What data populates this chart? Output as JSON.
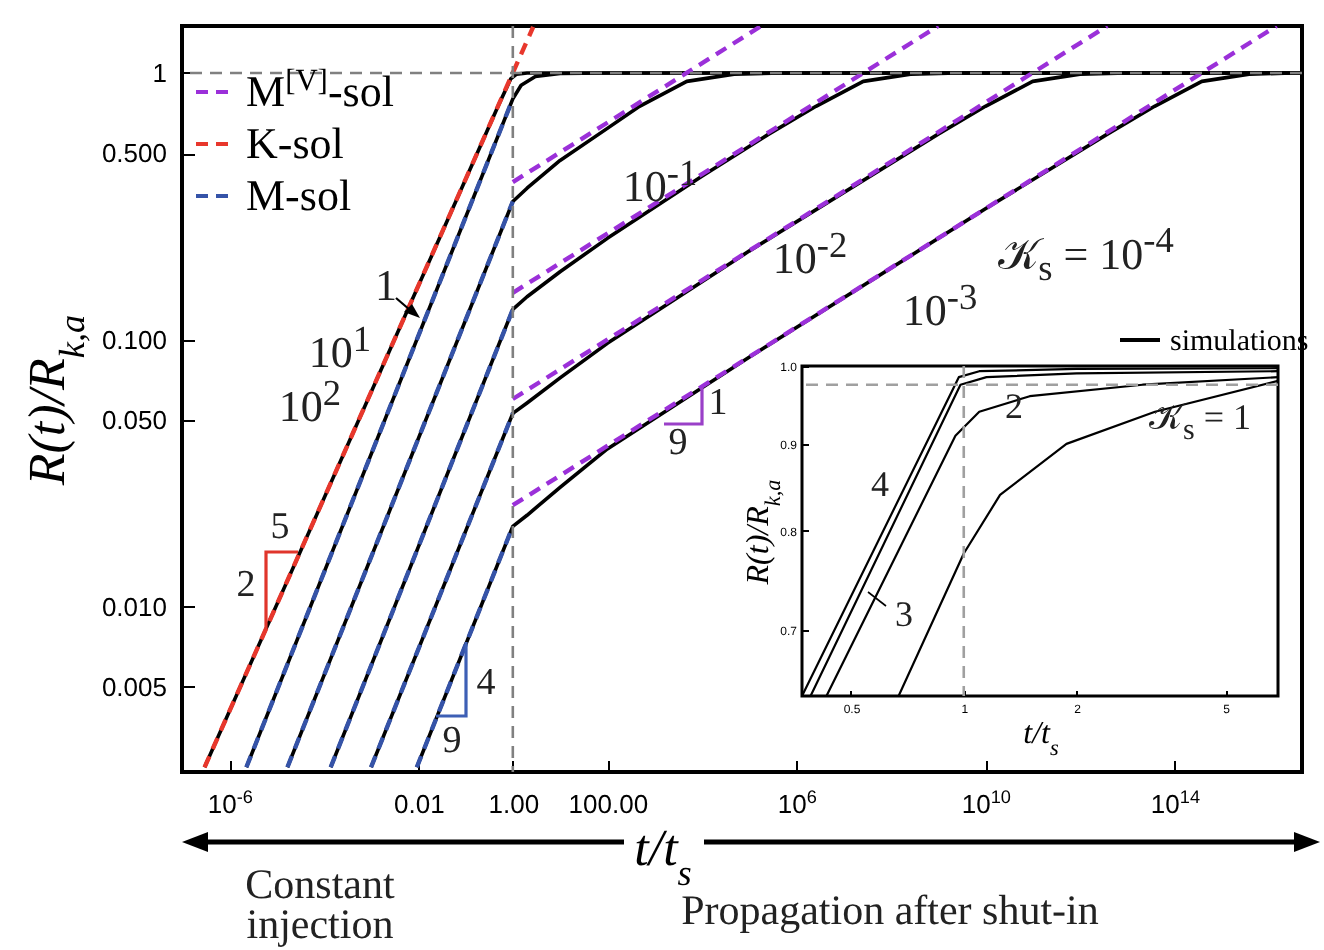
{
  "chart_data": [
    {
      "type": "line",
      "log": "xy",
      "xlim": [
        1e-07,
        5e+16
      ],
      "ylim": [
        0.0024,
        1.5
      ],
      "xticks": [
        {
          "value": 1e-06,
          "label": "10$^{-6}$"
        },
        0.01,
        {
          "value": 1,
          "label": "1.00"
        },
        {
          "value": 100,
          "label": "100.00"
        },
        {
          "value": 1000000.0,
          "label": "10$^{6}$"
        },
        {
          "value": 10000000000.0,
          "label": "10$^{10}$"
        },
        {
          "value": 100000000000000.0,
          "label": "10$^{14}$"
        }
      ],
      "yticks": [
        0.005,
        {
          "value": 0.01,
          "label": "0.010"
        },
        {
          "value": 0.05,
          "label": "0.050"
        },
        {
          "value": 0.1,
          "label": "0.100"
        },
        {
          "value": 0.5,
          "label": "0.500"
        },
        1
      ],
      "xlabel": "t/t$_{s}$",
      "ylabel": "R(t)/R$_{k,a}$",
      "grid": false,
      "legend": "top left",
      "series": [
        {
          "color": "#000000",
          "line_style": "solid",
          "x": [
            3e-07,
            0.5,
            0.9,
            1.2,
            2,
            5e+16
          ],
          "values": [
            0.0025,
            0.758,
            0.95,
            0.99,
            1.0,
            1.0
          ]
        },
        {
          "color": "#000000",
          "line_style": "solid",
          "x": [
            2.3e-06,
            1,
            1.5,
            3,
            10,
            100,
            5e+16
          ],
          "values": [
            0.0025,
            0.8,
            0.9,
            0.97,
            0.995,
            1.0,
            1.0
          ]
        },
        {
          "color": "#000000",
          "line_style": "solid",
          "x": [
            1.7e-05,
            1,
            2,
            10,
            100,
            480,
            4800,
            48000,
            480000,
            5e+16
          ],
          "values": [
            0.0025,
            0.33,
            0.37,
            0.47,
            0.62,
            0.75,
            0.93,
            0.99,
            1.0,
            1.0
          ]
        },
        {
          "color": "#000000",
          "line_style": "solid",
          "x": [
            0.00014,
            1,
            2,
            10,
            100,
            10000.0,
            260000.0,
            2600000.0,
            26000000.0,
            260000000.0,
            2600000000.0,
            5e+16
          ],
          "values": [
            0.0025,
            0.13,
            0.145,
            0.18,
            0.24,
            0.41,
            0.59,
            0.75,
            0.93,
            0.99,
            1.0,
            1.0
          ]
        },
        {
          "color": "#000000",
          "line_style": "solid",
          "x": [
            0.001,
            1,
            2,
            10,
            100,
            100000.0,
            1000000000.0,
            10000000000.0,
            100000000000.0,
            1000000000000.0,
            10000000000000.0,
            5e+16
          ],
          "values": [
            0.0025,
            0.053,
            0.058,
            0.072,
            0.097,
            0.215,
            0.59,
            0.75,
            0.93,
            0.99,
            1.0,
            1.0
          ]
        },
        {
          "color": "#000000",
          "line_style": "solid",
          "x": [
            0.0093,
            1,
            2,
            10,
            100,
            100000.0,
            10000000000.0,
            3800000000000.0,
            38000000000000.0,
            380000000000000.0,
            3800000000000000.0,
            3e+16,
            5e+16
          ],
          "values": [
            0.0025,
            0.02,
            0.022,
            0.028,
            0.039,
            0.086,
            0.31,
            0.59,
            0.75,
            0.93,
            0.99,
            1.0,
            1.0
          ]
        },
        {
          "name": "M$^{[V]}$-sol",
          "color": "#9b30d9",
          "line_style": "dashed",
          "x": [
            1,
            180000.0
          ],
          "values": [
            0.39,
            1.5
          ]
        },
        {
          "color": "#9b30d9",
          "line_style": "dashed",
          "x": [
            1,
            1000000000.0
          ],
          "values": [
            0.15,
            1.5
          ]
        },
        {
          "color": "#9b30d9",
          "line_style": "dashed",
          "x": [
            1,
            3800000000000.0
          ],
          "values": [
            0.06,
            1.5
          ]
        },
        {
          "color": "#9b30d9",
          "line_style": "dashed",
          "x": [
            1,
            1.45e+16
          ],
          "values": [
            0.024,
            1.5
          ]
        },
        {
          "name": "K-sol",
          "color": "#e8372c",
          "line_style": "dashed",
          "x": [
            3e-07,
            2.7
          ],
          "values": [
            0.0025,
            1.488
          ]
        },
        {
          "name": "M-sol",
          "color": "#3553a8",
          "line_style": "dashed",
          "x": [
            2.3e-06,
            1
          ],
          "values": [
            0.0025,
            0.8
          ]
        },
        {
          "color": "#3553a8",
          "line_style": "dashed",
          "x": [
            1.7e-05,
            1
          ],
          "values": [
            0.0025,
            0.33
          ]
        },
        {
          "color": "#3553a8",
          "line_style": "dashed",
          "x": [
            0.00014,
            1
          ],
          "values": [
            0.0025,
            0.13
          ]
        },
        {
          "color": "#3553a8",
          "line_style": "dashed",
          "x": [
            0.001,
            1
          ],
          "values": [
            0.0025,
            0.053
          ]
        },
        {
          "color": "#3553a8",
          "line_style": "dashed",
          "x": [
            0.0093,
            1
          ],
          "values": [
            0.0025,
            0.02
          ]
        }
      ],
      "ref_lines": [
        {
          "axis": "y",
          "value": 1,
          "color": "#808080",
          "line_style": "dashed"
        },
        {
          "axis": "x",
          "value": 1,
          "color": "#808080",
          "line_style": "dashed"
        }
      ],
      "annotations": [
        "1",
        "10$^{1}$",
        "10$^{2}$",
        "10$^{-1}$",
        "10$^{-2}$",
        "10$^{-3}$",
        "𝒦$_{s}$ = 10$^{-4}$",
        "5",
        "2",
        "4",
        "9",
        "1",
        "9",
        "Constant injection",
        "Propagation after shut-in"
      ]
    },
    {
      "type": "line",
      "log": "xy",
      "xlim": [
        0.37,
        6.9
      ],
      "ylim": [
        0.64,
        1.0
      ],
      "xticks": [
        0.5,
        1,
        2,
        5
      ],
      "yticks": [
        0.7,
        0.8,
        0.9,
        {
          "value": 1,
          "label": "1.0"
        }
      ],
      "xlabel": "t/t$_{s}$",
      "ylabel": "R(t)/R$_{k,a}$",
      "grid": false,
      "legend": "top right",
      "series": [
        {
          "name": "simulations",
          "color": "#000000",
          "line_style": "solid",
          "x": [
            0.37,
            0.97,
            1.1,
            2,
            6.9
          ],
          "values": [
            0.64,
            0.985,
            0.993,
            0.996,
            0.997
          ]
        },
        {
          "color": "#000000",
          "line_style": "solid",
          "x": [
            0.39,
            0.98,
            1.15,
            2,
            6.9
          ],
          "values": [
            0.64,
            0.975,
            0.985,
            0.99,
            0.993
          ]
        },
        {
          "color": "#000000",
          "line_style": "solid",
          "x": [
            0.43,
            0.95,
            1.1,
            1.5,
            3,
            6.9
          ],
          "values": [
            0.64,
            0.91,
            0.94,
            0.96,
            0.975,
            0.985
          ]
        },
        {
          "color": "#000000",
          "line_style": "solid",
          "x": [
            0.67,
            1,
            1.25,
            1.88,
            3.24,
            6.9
          ],
          "values": [
            0.64,
            0.776,
            0.84,
            0.9,
            0.94,
            0.98
          ]
        }
      ],
      "ref_lines": [
        {
          "axis": "y",
          "value": 0.975,
          "color": "#a0a0a0",
          "line_style": "dashed"
        },
        {
          "axis": "x",
          "value": 1,
          "color": "#a0a0a0",
          "line_style": "dashed"
        }
      ],
      "annotations": [
        "4",
        "3",
        "2",
        "𝒦$_{s}$ = 1"
      ]
    }
  ]
}
